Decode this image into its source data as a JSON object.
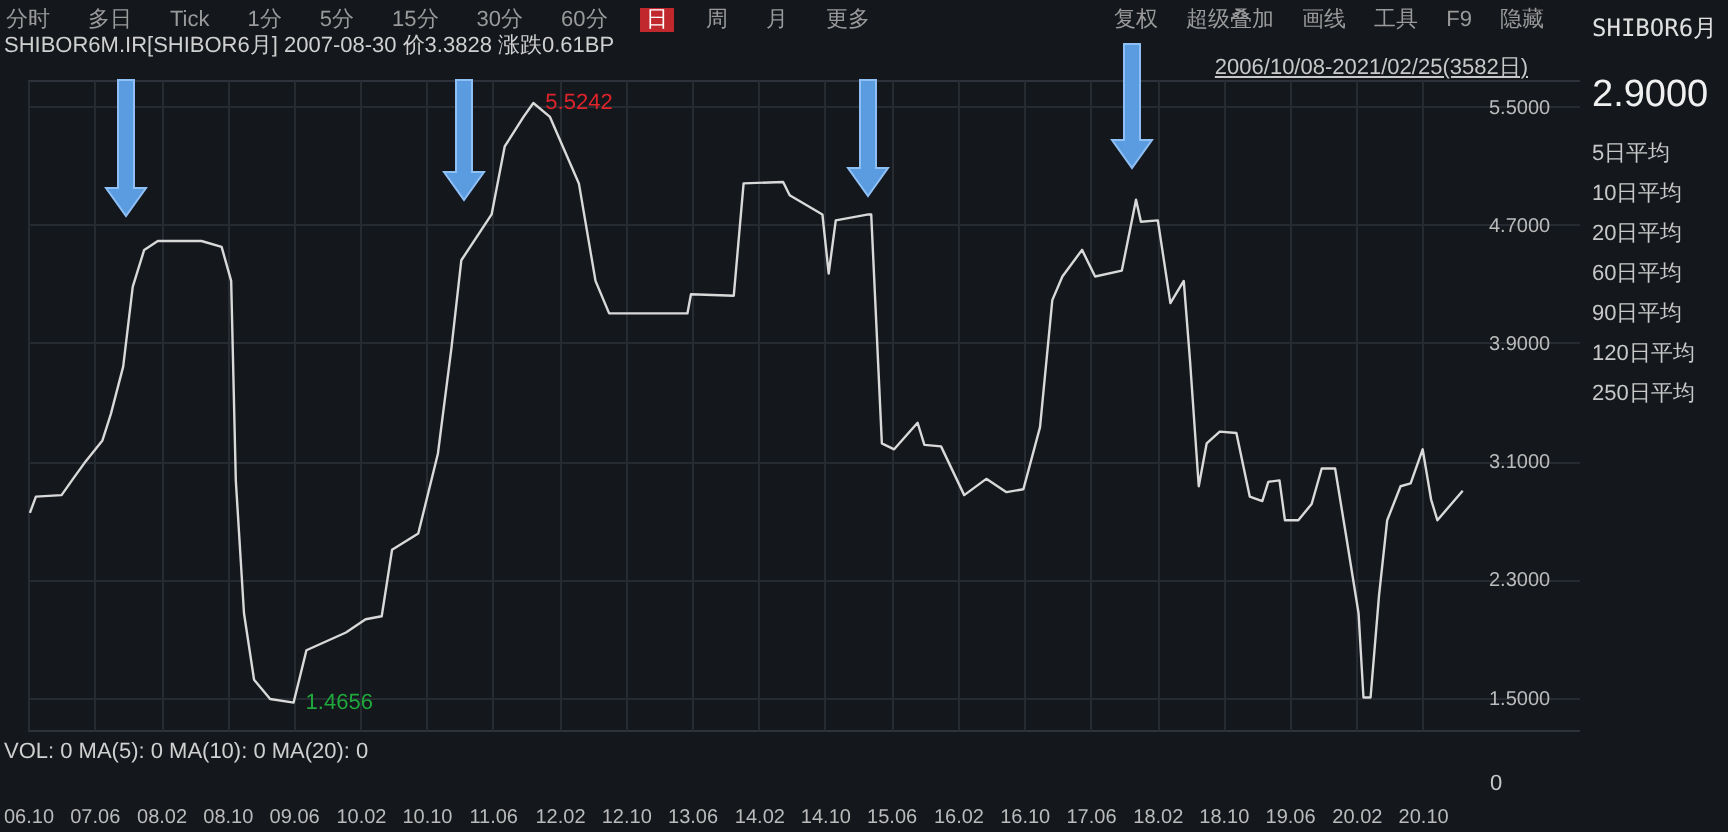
{
  "chart_data": {
    "type": "line",
    "title": "SHIBOR6M.IR[SHIBOR6月]   2007-08-30 价3.3828 涨跌0.61BP",
    "subtitle": "2006/10/08-2021/02/25(3582日)",
    "x": [
      "2006-10-08",
      "2006-10-30",
      "2007-02-01",
      "2007-03-15",
      "2007-05-01",
      "2007-07-01",
      "2007-08-01",
      "2007-09-15",
      "2007-10-20",
      "2007-12-01",
      "2008-01-20",
      "2008-06-28",
      "2008-09-10",
      "2008-10-15",
      "2008-11-01",
      "2008-12-01",
      "2009-01-07",
      "2009-03-07",
      "2009-06-01",
      "2009-07-18",
      "2009-12-10",
      "2010-02-20",
      "2010-04-20",
      "2010-05-28",
      "2010-09-01",
      "2010-11-12",
      "2011-01-01",
      "2011-02-06",
      "2011-05-28",
      "2011-07-15",
      "2011-09-22",
      "2011-10-28",
      "2011-12-28",
      "2012-04-12",
      "2012-06-12",
      "2012-08-01",
      "2013-05-15",
      "2013-05-28",
      "2013-11-01",
      "2013-12-07",
      "2014-05-01",
      "2014-05-25",
      "2014-09-22",
      "2014-10-15",
      "2014-11-10",
      "2015-03-10",
      "2015-03-20",
      "2015-04-28",
      "2015-06-12",
      "2015-09-06",
      "2015-10-01",
      "2015-12-01",
      "2016-02-24",
      "2016-05-15",
      "2016-07-28",
      "2016-09-28",
      "2016-11-28",
      "2017-01-12",
      "2017-02-18",
      "2017-05-01",
      "2017-06-18",
      "2017-09-24",
      "2017-11-15",
      "2017-12-03",
      "2018-02-03",
      "2018-03-21",
      "2018-05-09",
      "2018-06-01",
      "2018-07-03",
      "2018-08-01",
      "2018-09-18",
      "2018-11-18",
      "2019-01-06",
      "2019-02-21",
      "2019-03-15",
      "2019-04-25",
      "2019-05-15",
      "2019-07-03",
      "2019-08-21",
      "2019-09-27",
      "2019-11-15",
      "2019-12-24",
      "2020-02-09",
      "2020-02-27",
      "2020-03-24",
      "2020-04-24",
      "2020-05-24",
      "2020-07-12",
      "2020-08-18",
      "2020-10-01",
      "2020-11-01",
      "2020-11-24",
      "2021-02-25"
    ],
    "series": [
      {
        "color": "#d9d9d9",
        "values": [
          2.75,
          2.86,
          2.87,
          2.98,
          3.1,
          3.24,
          3.42,
          3.74,
          4.28,
          4.53,
          4.59,
          4.59,
          4.55,
          4.32,
          2.97,
          2.07,
          1.62,
          1.49,
          1.4656,
          1.82,
          1.94,
          2.03,
          2.05,
          2.5,
          2.61,
          3.15,
          3.87,
          4.46,
          4.77,
          5.23,
          5.43,
          5.5242,
          5.43,
          4.98,
          4.32,
          4.1,
          4.1,
          4.23,
          4.22,
          4.98,
          4.99,
          4.9,
          4.77,
          4.37,
          4.73,
          4.77,
          4.77,
          3.22,
          3.18,
          3.36,
          3.21,
          3.2,
          2.87,
          2.98,
          2.89,
          2.91,
          3.33,
          4.19,
          4.35,
          4.53,
          4.35,
          4.39,
          4.87,
          4.72,
          4.73,
          4.17,
          4.32,
          3.78,
          2.93,
          3.22,
          3.3,
          3.29,
          2.86,
          2.83,
          2.96,
          2.97,
          2.7,
          2.7,
          2.81,
          3.05,
          3.05,
          2.61,
          2.07,
          1.5,
          1.5,
          2.19,
          2.7,
          2.93,
          2.95,
          3.18,
          2.84,
          2.7,
          2.9
        ]
      }
    ],
    "xlim": [
      "2006-10-01",
      "2022-05-01"
    ],
    "xticks": [
      {
        "value": "2006-10",
        "label": "06.10"
      },
      {
        "value": "2007-06",
        "label": "07.06"
      },
      {
        "value": "2008-02",
        "label": "08.02"
      },
      {
        "value": "2008-10",
        "label": "08.10"
      },
      {
        "value": "2009-06",
        "label": "09.06"
      },
      {
        "value": "2010-02",
        "label": "10.02"
      },
      {
        "value": "2010-10",
        "label": "10.10"
      },
      {
        "value": "2011-06",
        "label": "11.06"
      },
      {
        "value": "2012-02",
        "label": "12.02"
      },
      {
        "value": "2012-10",
        "label": "12.10"
      },
      {
        "value": "2013-06",
        "label": "13.06"
      },
      {
        "value": "2014-02",
        "label": "14.02"
      },
      {
        "value": "2014-10",
        "label": "14.10"
      },
      {
        "value": "2015-06",
        "label": "15.06"
      },
      {
        "value": "2016-02",
        "label": "16.02"
      },
      {
        "value": "2016-10",
        "label": "16.10"
      },
      {
        "value": "2017-06",
        "label": "17.06"
      },
      {
        "value": "2018-02",
        "label": "18.02"
      },
      {
        "value": "2018-10",
        "label": "18.10"
      },
      {
        "value": "2019-06",
        "label": "19.06"
      },
      {
        "value": "2020-02",
        "label": "20.02"
      },
      {
        "value": "2020-10",
        "label": "20.10"
      }
    ],
    "ylim": [
      1.28,
      5.68
    ],
    "yticks": [
      {
        "value": 1.5,
        "label": "1.5000"
      },
      {
        "value": 2.3,
        "label": "2.3000"
      },
      {
        "value": 3.1,
        "label": "3.1000"
      },
      {
        "value": 3.9,
        "label": "3.9000"
      },
      {
        "value": 4.7,
        "label": "4.7000"
      },
      {
        "value": 5.5,
        "label": "5.5000"
      }
    ],
    "grid": true,
    "annotations": [
      "分时",
      "多日",
      "Tick",
      "1分",
      "5分",
      "15分",
      "30分",
      "60分",
      "日",
      "周",
      "月",
      "更多",
      "复权",
      "超级叠加",
      "画线",
      "工具",
      "F9",
      "隐藏",
      "SHIBOR6月",
      "2.9000",
      "5日平均",
      "10日平均",
      "20日平均",
      "60日平均",
      "90日平均",
      "120日平均",
      "250日平均",
      "VOL: 0 MA(5): 0 MA(10): 0 MA(20): 0",
      "0",
      {
        "text": "5.5242",
        "x": "2011-10-28",
        "y": 5.5242
      },
      {
        "text": "1.4656",
        "x": "2009-06-01",
        "y": 1.4656
      }
    ]
  }
}
